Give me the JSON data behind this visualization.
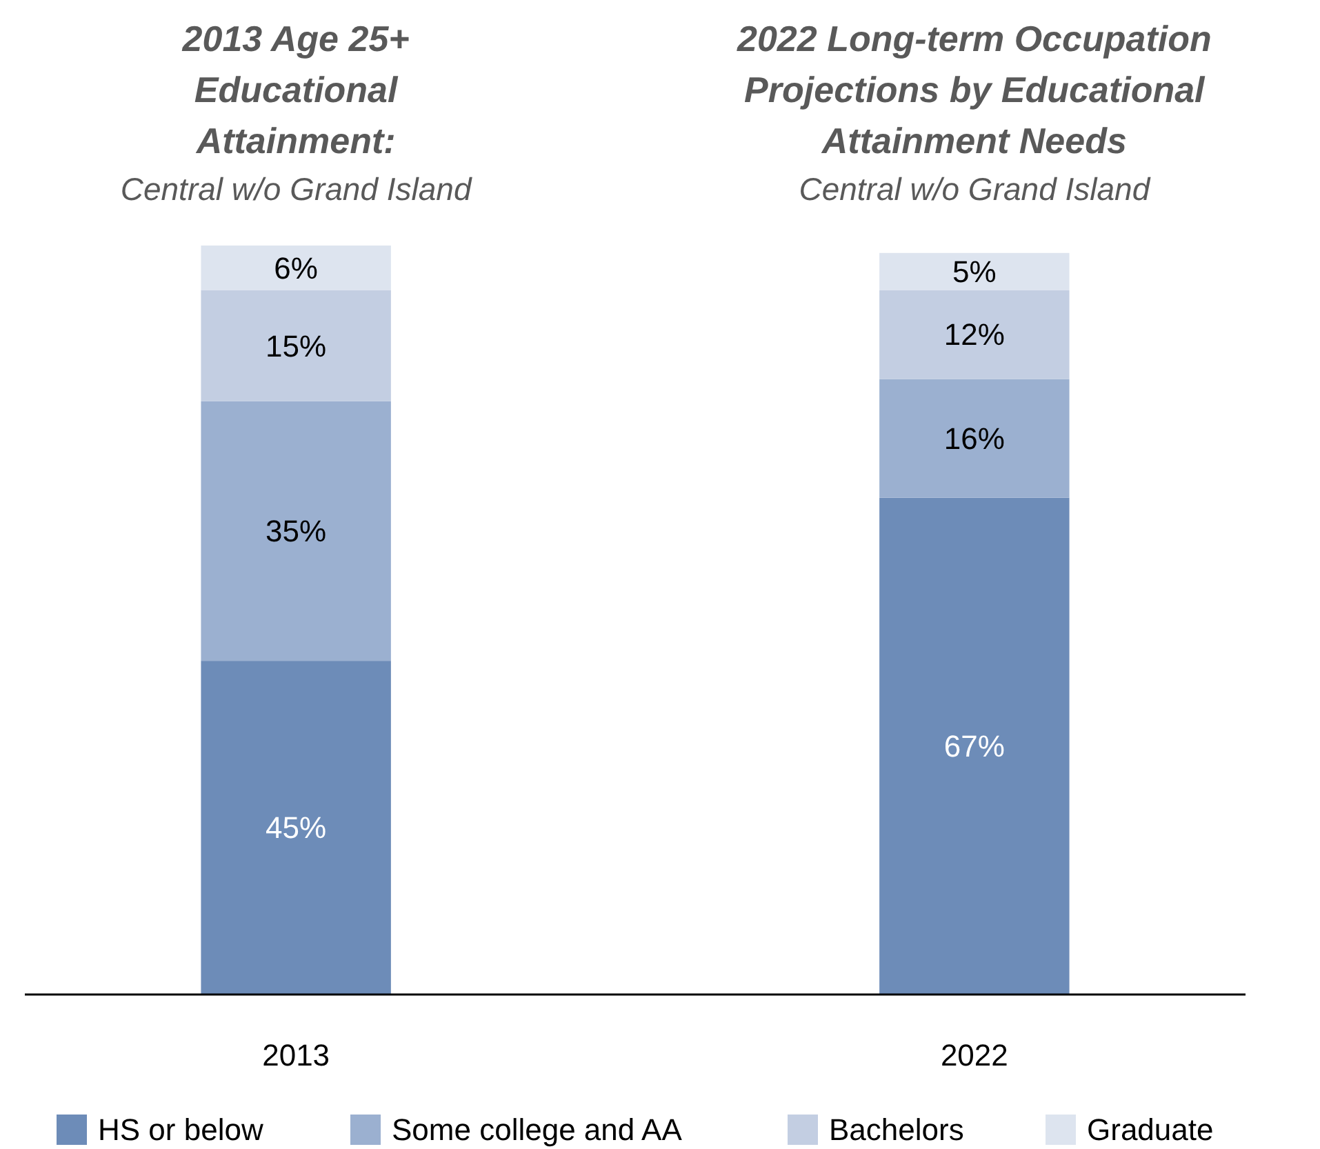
{
  "chart_data": {
    "type": "bar",
    "stacked": true,
    "categories": [
      "2013",
      "2022"
    ],
    "series": [
      {
        "name": "HS or below",
        "color": "#6d8cb8",
        "values": [
          45,
          67
        ],
        "value_labels": [
          "45%",
          "67%"
        ]
      },
      {
        "name": "Some college and AA",
        "color": "#9bb0d0",
        "values": [
          35,
          16
        ],
        "value_labels": [
          "35%",
          "16%"
        ]
      },
      {
        "name": "Bachelors",
        "color": "#c3cee2",
        "values": [
          15,
          12
        ],
        "value_labels": [
          "15%",
          "12%"
        ]
      },
      {
        "name": "Graduate",
        "color": "#dde4ef",
        "values": [
          6,
          5
        ],
        "value_labels": [
          "6%",
          "5%"
        ]
      }
    ],
    "legend": "bottom",
    "annotations": [
      "2013 Age 25+ Educational Attainment:",
      "Central w/o Grand Island",
      "2022 Long-term Occupation Projections by Educational Attainment Needs",
      "Central w/o Grand Island"
    ]
  }
}
